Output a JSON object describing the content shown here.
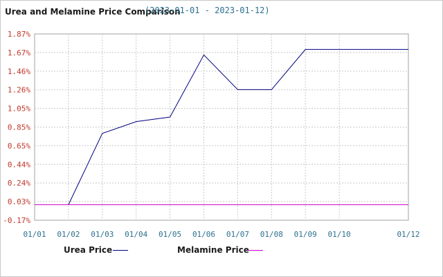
{
  "title": "Urea and Melamine Price Comparison",
  "subtitle": "(2023-01-01 - 2023-01-12)",
  "legend": [
    {
      "label": "Urea Price",
      "color": "#000080"
    },
    {
      "label": "Melamine Price",
      "color": "#cc00cc"
    }
  ],
  "chart_data": {
    "type": "line",
    "x_labels": [
      "01/01",
      "01/02",
      "01/03",
      "01/04",
      "01/05",
      "01/06",
      "01/07",
      "01/08",
      "01/09",
      "01/10",
      "01/12"
    ],
    "y_tick_labels": [
      "1.87%",
      "1.67%",
      "1.46%",
      "1.26%",
      "1.05%",
      "0.85%",
      "0.65%",
      "0.44%",
      "0.24%",
      "0.03%",
      "-0.17%"
    ],
    "ylim": [
      -0.17,
      1.87
    ],
    "grid": true,
    "legend_position": "bottom",
    "series": [
      {
        "name": "Urea Price",
        "color": "#000080",
        "x": [
          "01/02",
          "01/03",
          "01/04",
          "01/05",
          "01/06",
          "01/07",
          "01/08",
          "01/09",
          "01/10",
          "01/12"
        ],
        "values": [
          0.0,
          0.78,
          0.91,
          0.96,
          1.64,
          1.26,
          1.26,
          1.7,
          1.7,
          1.7
        ]
      },
      {
        "name": "Melamine Price",
        "color": "#cc00cc",
        "x": [
          "01/01",
          "01/12"
        ],
        "values": [
          0.0,
          0.0
        ]
      }
    ]
  }
}
